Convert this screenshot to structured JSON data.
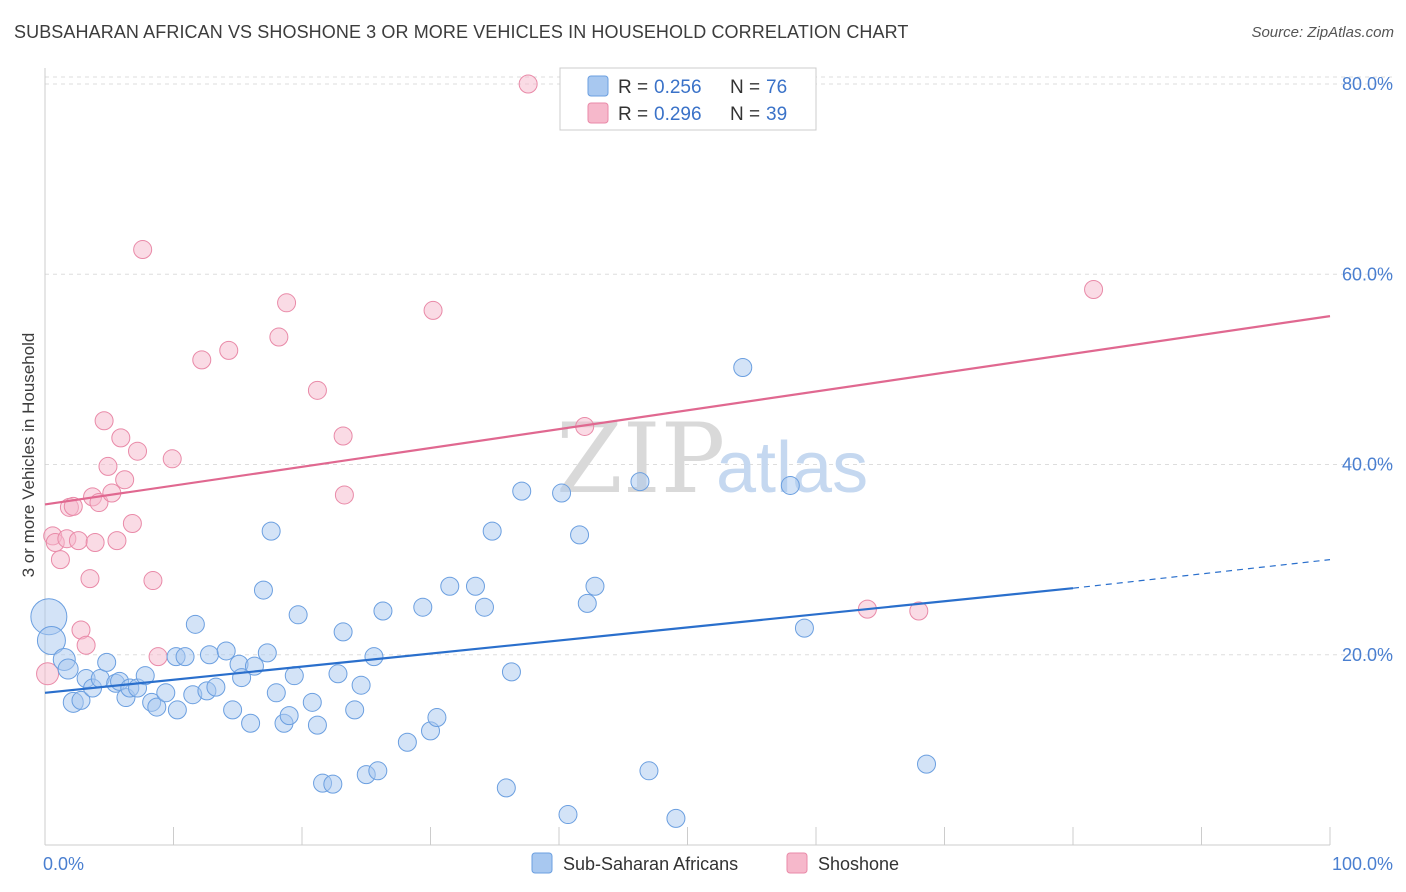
{
  "title": "SUBSAHARAN AFRICAN VS SHOSHONE 3 OR MORE VEHICLES IN HOUSEHOLD CORRELATION CHART",
  "source": "Source: ZipAtlas.com",
  "watermark": {
    "zip": "ZIP",
    "atlas": "atlas"
  },
  "colors": {
    "blue_fill": "#a8c8f0",
    "blue_stroke": "#6b9fe0",
    "blue_line": "#2a6fcc",
    "pink_fill": "#f6b8cb",
    "pink_stroke": "#e98aa8",
    "pink_line": "#e06890",
    "grid": "#dddddd",
    "axis_label": "#4a7fd0"
  },
  "legend": {
    "rows": [
      {
        "r_label": "R = ",
        "r_value": "0.256",
        "n_label": "N = ",
        "n_value": "76",
        "series": "blue"
      },
      {
        "r_label": "R = ",
        "r_value": "0.296",
        "n_label": "N = ",
        "n_value": "39",
        "series": "pink"
      }
    ]
  },
  "chart_data": {
    "type": "scatter",
    "title": "SUBSAHARAN AFRICAN VS SHOSHONE 3 OR MORE VEHICLES IN HOUSEHOLD CORRELATION CHART",
    "xlabel": "",
    "ylabel": "3 or more Vehicles in Household",
    "xlim": [
      0,
      100
    ],
    "ylim": [
      0,
      82
    ],
    "x_tick_labels": [
      "0.0%",
      "100.0%"
    ],
    "y_ticks": [
      20,
      40,
      60,
      80
    ],
    "y_tick_labels": [
      "20.0%",
      "40.0%",
      "60.0%",
      "80.0%"
    ],
    "grid": true,
    "legend_position": "top-center",
    "series": [
      {
        "name": "Sub-Saharan Africans",
        "color": "blue",
        "r": 0.256,
        "n": 76,
        "trend": {
          "x0": 0,
          "y0": 16.0,
          "x1": 80,
          "y1": 27.0,
          "dashed_to_x": 100,
          "dashed_to_y": 30.0
        },
        "points": [
          [
            0.3,
            24.0,
            18
          ],
          [
            0.5,
            21.5,
            14
          ],
          [
            1.5,
            19.5,
            11
          ],
          [
            1.8,
            18.5,
            10
          ],
          [
            2.2,
            15.0,
            10
          ],
          [
            2.8,
            15.2,
            9
          ],
          [
            3.2,
            17.5,
            9
          ],
          [
            3.7,
            16.5,
            9
          ],
          [
            4.3,
            17.5,
            9
          ],
          [
            4.8,
            19.2,
            9
          ],
          [
            5.5,
            17.0,
            9
          ],
          [
            5.8,
            17.2,
            9
          ],
          [
            6.3,
            15.5,
            9
          ],
          [
            6.6,
            16.5,
            9
          ],
          [
            7.2,
            16.5,
            9
          ],
          [
            7.8,
            17.8,
            9
          ],
          [
            8.3,
            15.0,
            9
          ],
          [
            8.7,
            14.5,
            9
          ],
          [
            9.4,
            16.0,
            9
          ],
          [
            10.2,
            19.8,
            9
          ],
          [
            10.3,
            14.2,
            9
          ],
          [
            10.9,
            19.8,
            9
          ],
          [
            11.7,
            23.2,
            9
          ],
          [
            11.5,
            15.8,
            9
          ],
          [
            12.6,
            16.2,
            9
          ],
          [
            12.8,
            20.0,
            9
          ],
          [
            13.3,
            16.6,
            9
          ],
          [
            14.1,
            20.4,
            9
          ],
          [
            14.6,
            14.2,
            9
          ],
          [
            15.1,
            19.0,
            9
          ],
          [
            15.3,
            17.6,
            9
          ],
          [
            16.0,
            12.8,
            9
          ],
          [
            16.3,
            18.8,
            9
          ],
          [
            17.0,
            26.8,
            9
          ],
          [
            17.3,
            20.2,
            9
          ],
          [
            17.6,
            33.0,
            9
          ],
          [
            18.0,
            16.0,
            9
          ],
          [
            18.6,
            12.8,
            9
          ],
          [
            19.0,
            13.6,
            9
          ],
          [
            19.4,
            17.8,
            9
          ],
          [
            19.7,
            24.2,
            9
          ],
          [
            20.8,
            15.0,
            9
          ],
          [
            21.2,
            12.6,
            9
          ],
          [
            21.6,
            6.5,
            9
          ],
          [
            22.4,
            6.4,
            9
          ],
          [
            22.8,
            18.0,
            9
          ],
          [
            23.2,
            22.4,
            9
          ],
          [
            24.1,
            14.2,
            9
          ],
          [
            24.6,
            16.8,
            9
          ],
          [
            25.0,
            7.4,
            9
          ],
          [
            25.6,
            19.8,
            9
          ],
          [
            25.9,
            7.8,
            9
          ],
          [
            26.3,
            24.6,
            9
          ],
          [
            28.2,
            10.8,
            9
          ],
          [
            29.4,
            25.0,
            9
          ],
          [
            30.0,
            12.0,
            9
          ],
          [
            30.5,
            13.4,
            9
          ],
          [
            31.5,
            27.2,
            9
          ],
          [
            33.5,
            27.2,
            9
          ],
          [
            34.2,
            25.0,
            9
          ],
          [
            34.8,
            33.0,
            9
          ],
          [
            35.9,
            6.0,
            9
          ],
          [
            36.3,
            18.2,
            9
          ],
          [
            37.1,
            37.2,
            9
          ],
          [
            40.2,
            37.0,
            9
          ],
          [
            40.7,
            3.2,
            9
          ],
          [
            41.6,
            32.6,
            9
          ],
          [
            42.2,
            25.4,
            9
          ],
          [
            42.8,
            27.2,
            9
          ],
          [
            46.3,
            38.2,
            9
          ],
          [
            47.0,
            7.8,
            9
          ],
          [
            49.1,
            2.8,
            9
          ],
          [
            54.3,
            50.2,
            9
          ],
          [
            58.0,
            37.8,
            9
          ],
          [
            59.1,
            22.8,
            9
          ],
          [
            68.6,
            8.5,
            9
          ]
        ]
      },
      {
        "name": "Shoshone",
        "color": "pink",
        "r": 0.296,
        "n": 39,
        "trend": {
          "x0": 0,
          "y0": 35.8,
          "x1": 100,
          "y1": 55.6
        },
        "points": [
          [
            0.2,
            18.0,
            11
          ],
          [
            0.6,
            32.5,
            9
          ],
          [
            0.8,
            31.8,
            9
          ],
          [
            1.2,
            30.0,
            9
          ],
          [
            1.7,
            32.2,
            9
          ],
          [
            1.9,
            35.5,
            9
          ],
          [
            2.2,
            35.6,
            9
          ],
          [
            2.6,
            32.0,
            9
          ],
          [
            2.8,
            22.6,
            9
          ],
          [
            3.2,
            21.0,
            9
          ],
          [
            3.5,
            28.0,
            9
          ],
          [
            3.7,
            36.6,
            9
          ],
          [
            3.9,
            31.8,
            9
          ],
          [
            4.2,
            36.0,
            9
          ],
          [
            4.6,
            44.6,
            9
          ],
          [
            4.9,
            39.8,
            9
          ],
          [
            5.2,
            37.0,
            9
          ],
          [
            5.6,
            32.0,
            9
          ],
          [
            5.9,
            42.8,
            9
          ],
          [
            6.2,
            38.4,
            9
          ],
          [
            6.8,
            33.8,
            9
          ],
          [
            7.2,
            41.4,
            9
          ],
          [
            7.6,
            62.6,
            9
          ],
          [
            8.4,
            27.8,
            9
          ],
          [
            8.8,
            19.8,
            9
          ],
          [
            9.9,
            40.6,
            9
          ],
          [
            12.2,
            51.0,
            9
          ],
          [
            14.3,
            52.0,
            9
          ],
          [
            18.2,
            53.4,
            9
          ],
          [
            18.8,
            57.0,
            9
          ],
          [
            21.2,
            47.8,
            9
          ],
          [
            23.2,
            43.0,
            9
          ],
          [
            23.3,
            36.8,
            9
          ],
          [
            30.2,
            56.2,
            9
          ],
          [
            37.6,
            80.0,
            9
          ],
          [
            42.0,
            44.0,
            9
          ],
          [
            64.0,
            24.8,
            9
          ],
          [
            68.0,
            24.6,
            9
          ],
          [
            81.6,
            58.4,
            9
          ]
        ]
      }
    ]
  },
  "bottom_legend": [
    {
      "label": "Sub-Saharan Africans",
      "series": "blue"
    },
    {
      "label": "Shoshone",
      "series": "pink"
    }
  ]
}
